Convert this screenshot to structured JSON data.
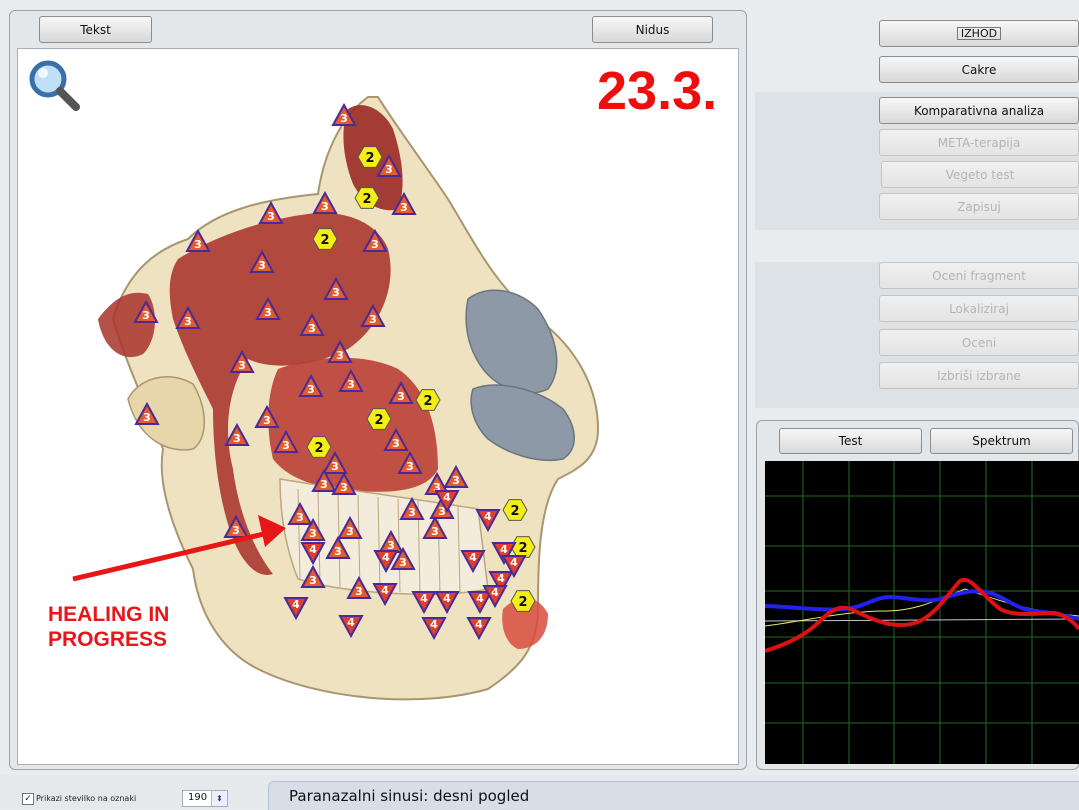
{
  "left_panel": {
    "tekst_label": "Tekst",
    "nidus_label": "Nidus"
  },
  "overlay": {
    "date": "23.3.",
    "annotation": "HEALING IN\nPROGRESS",
    "annotation_color": "#e81616"
  },
  "right_panel": {
    "top_button_label": "IZHOD",
    "buttons": [
      {
        "label": "Cakre",
        "enabled": true
      },
      {
        "label": "Komparativna analiza",
        "enabled": true
      },
      {
        "label": "META-terapija",
        "enabled": false
      },
      {
        "label": "Vegeto test",
        "enabled": false
      },
      {
        "label": "Zapisuj",
        "enabled": false
      },
      {
        "label": "Oceni fragment",
        "enabled": false
      },
      {
        "label": "Lokaliziraj",
        "enabled": false
      },
      {
        "label": "Oceni",
        "enabled": false
      },
      {
        "label": "Izbriši izbrane",
        "enabled": false
      }
    ],
    "chart_tabs": [
      "Test",
      "Spektrum"
    ]
  },
  "markers": {
    "level_3": "3",
    "level_2": "2",
    "level_4": "4",
    "colors": {
      "level_3": "#e35c2a",
      "level_2": "#f5ee16",
      "level_4": "#e0402a"
    }
  },
  "status": {
    "checkbox_label": "Prikazi stevilko na oznaki",
    "checkbox_checked": true,
    "spin_value": "190",
    "description": "Paranazalni sinusi: desni pogled"
  }
}
